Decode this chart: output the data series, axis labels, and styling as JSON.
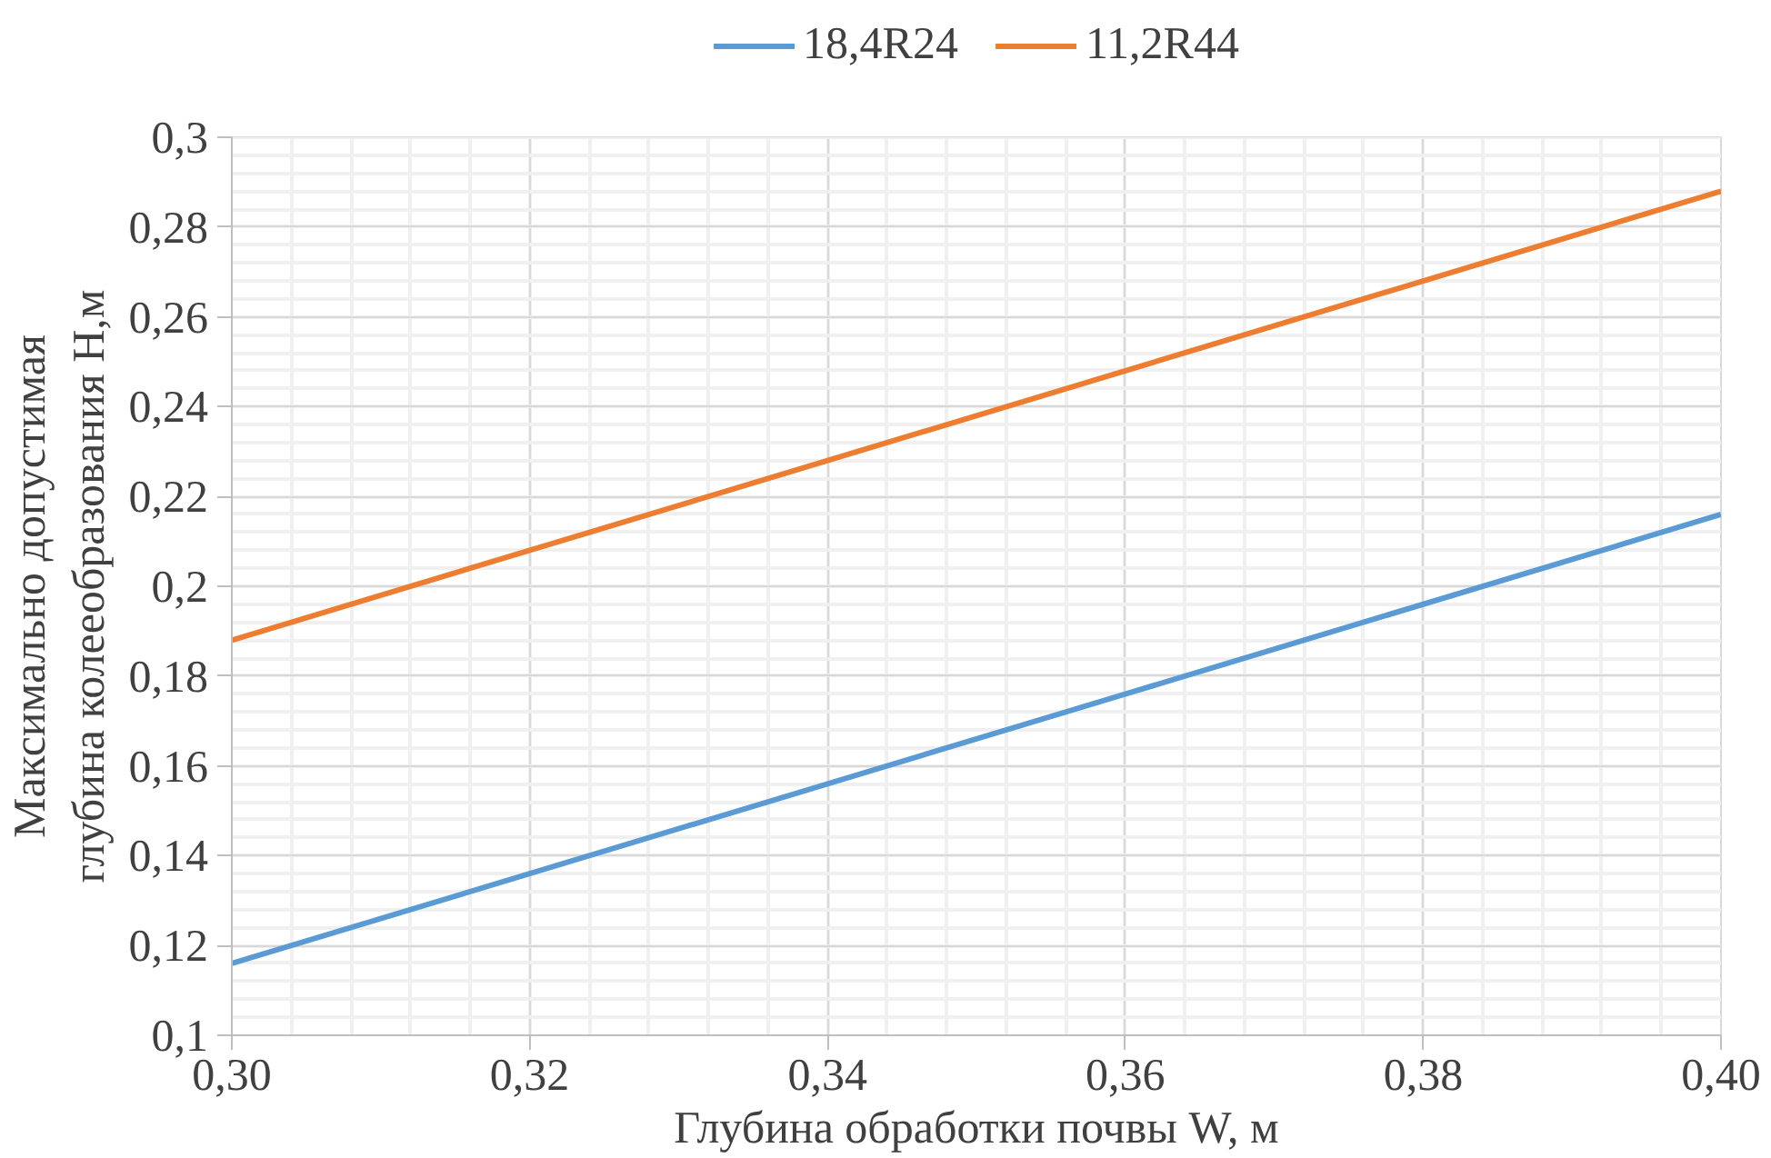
{
  "chart_data": {
    "type": "line",
    "xlabel": "Глубина обработки почвы W, м",
    "ylabel": "Максимально допустимая глубина колееобразования H,м",
    "x": [
      0.3,
      0.4
    ],
    "series": [
      {
        "name": "18,4R24",
        "color": "#5b9bd5",
        "values": [
          0.116,
          0.216
        ]
      },
      {
        "name": "11,2R44",
        "color": "#ed7d31",
        "values": [
          0.188,
          0.288
        ]
      }
    ],
    "xlim": [
      0.3,
      0.4
    ],
    "ylim": [
      0.1,
      0.3
    ],
    "xticks": [
      {
        "value": 0.3,
        "label": "0,30"
      },
      {
        "value": 0.32,
        "label": "0,32"
      },
      {
        "value": 0.34,
        "label": "0,34"
      },
      {
        "value": 0.36,
        "label": "0,36"
      },
      {
        "value": 0.38,
        "label": "0,38"
      },
      {
        "value": 0.4,
        "label": "0,40"
      }
    ],
    "yticks": [
      {
        "value": 0.1,
        "label": "0,1"
      },
      {
        "value": 0.12,
        "label": "0,12"
      },
      {
        "value": 0.14,
        "label": "0,14"
      },
      {
        "value": 0.16,
        "label": "0,16"
      },
      {
        "value": 0.18,
        "label": "0,18"
      },
      {
        "value": 0.2,
        "label": "0,2"
      },
      {
        "value": 0.22,
        "label": "0,22"
      },
      {
        "value": 0.24,
        "label": "0,24"
      },
      {
        "value": 0.26,
        "label": "0,26"
      },
      {
        "value": 0.28,
        "label": "0,28"
      },
      {
        "value": 0.3,
        "label": "0,3"
      }
    ],
    "grid": true,
    "legend": "top",
    "marker": "none",
    "line_style": "solid"
  }
}
